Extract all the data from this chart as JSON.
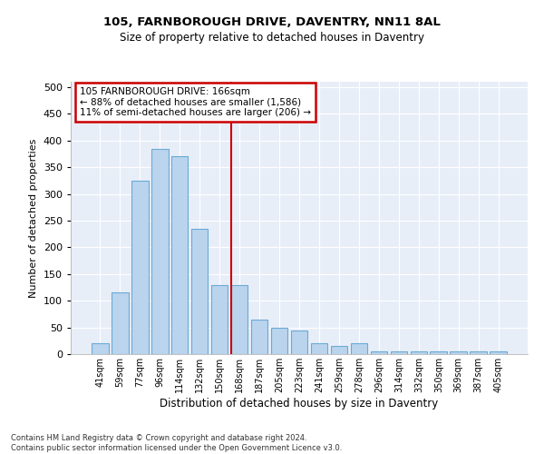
{
  "title1": "105, FARNBOROUGH DRIVE, DAVENTRY, NN11 8AL",
  "title2": "Size of property relative to detached houses in Daventry",
  "xlabel": "Distribution of detached houses by size in Daventry",
  "ylabel": "Number of detached properties",
  "categories": [
    "41sqm",
    "59sqm",
    "77sqm",
    "96sqm",
    "114sqm",
    "132sqm",
    "150sqm",
    "168sqm",
    "187sqm",
    "205sqm",
    "223sqm",
    "241sqm",
    "259sqm",
    "278sqm",
    "296sqm",
    "314sqm",
    "332sqm",
    "350sqm",
    "369sqm",
    "387sqm",
    "405sqm"
  ],
  "values": [
    20,
    115,
    325,
    385,
    370,
    235,
    130,
    130,
    65,
    50,
    45,
    20,
    15,
    20,
    5,
    5,
    5,
    5,
    5,
    5,
    5
  ],
  "bar_color": "#bad4ee",
  "bar_edge_color": "#6aaad4",
  "vline_color": "#cc0000",
  "vline_index": 7,
  "annotation_text": "105 FARNBOROUGH DRIVE: 166sqm\n← 88% of detached houses are smaller (1,586)\n11% of semi-detached houses are larger (206) →",
  "annotation_box_color": "#cc0000",
  "ylim": [
    0,
    510
  ],
  "yticks": [
    0,
    50,
    100,
    150,
    200,
    250,
    300,
    350,
    400,
    450,
    500
  ],
  "background_color": "#e8eef8",
  "grid_color": "#ffffff",
  "footer1": "Contains HM Land Registry data © Crown copyright and database right 2024.",
  "footer2": "Contains public sector information licensed under the Open Government Licence v3.0."
}
